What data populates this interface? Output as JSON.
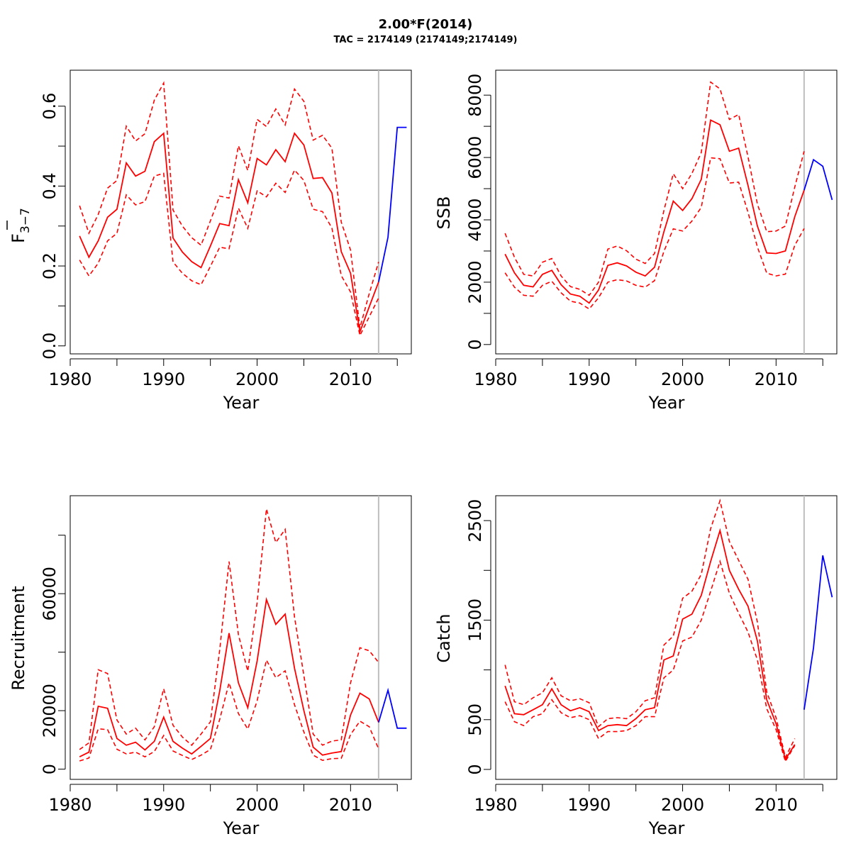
{
  "figure": {
    "title": "2.00*F(2014)",
    "subtitle": "TAC = 2174149 (2174149;2174149)"
  },
  "colors": {
    "estimate": "#ff0000",
    "forecast": "#0000ff",
    "divider": "#bebebe",
    "axis": "#000000"
  },
  "chart_data": [
    {
      "type": "line",
      "ylabel": "F3-7",
      "ylabel_main": "F",
      "ylabel_sub": "3−7",
      "xlabel": "Year",
      "xlim": [
        1980,
        2016.5
      ],
      "ylim": [
        -0.02,
        0.69
      ],
      "x_ticks": [
        1980,
        1985,
        1990,
        1995,
        2000,
        2005,
        2010,
        2015
      ],
      "x_tick_labels": [
        "1980",
        "1990",
        "2000",
        "2010"
      ],
      "x_tick_label_values": [
        1980,
        1990,
        2000,
        2010
      ],
      "y_ticks": [
        0,
        0.1,
        0.2,
        0.3,
        0.4,
        0.5,
        0.6
      ],
      "y_tick_labels": [
        "0.0",
        "0.2",
        "0.4",
        "0.6"
      ],
      "y_tick_label_values": [
        0,
        0.2,
        0.4,
        0.6
      ],
      "divider_x": 2013,
      "years": [
        1981,
        1982,
        1983,
        1984,
        1985,
        1986,
        1987,
        1988,
        1989,
        1990,
        1991,
        1992,
        1993,
        1994,
        1995,
        1996,
        1997,
        1998,
        1999,
        2000,
        2001,
        2002,
        2003,
        2004,
        2005,
        2006,
        2007,
        2008,
        2009,
        2010,
        2011,
        2012,
        2013
      ],
      "estimate": [
        0.275,
        0.222,
        0.263,
        0.322,
        0.342,
        0.458,
        0.425,
        0.437,
        0.511,
        0.532,
        0.27,
        0.235,
        0.211,
        0.196,
        0.25,
        0.306,
        0.301,
        0.416,
        0.358,
        0.469,
        0.453,
        0.491,
        0.461,
        0.532,
        0.503,
        0.419,
        0.421,
        0.383,
        0.236,
        0.182,
        0.035,
        0.098,
        0.16
      ],
      "upper": [
        0.351,
        0.282,
        0.329,
        0.395,
        0.414,
        0.55,
        0.513,
        0.531,
        0.615,
        0.658,
        0.34,
        0.3,
        0.271,
        0.252,
        0.313,
        0.375,
        0.37,
        0.501,
        0.439,
        0.567,
        0.549,
        0.593,
        0.553,
        0.643,
        0.612,
        0.515,
        0.527,
        0.495,
        0.31,
        0.24,
        0.045,
        0.131,
        0.21
      ],
      "lower": [
        0.215,
        0.175,
        0.207,
        0.263,
        0.282,
        0.378,
        0.353,
        0.361,
        0.425,
        0.432,
        0.21,
        0.182,
        0.163,
        0.153,
        0.199,
        0.247,
        0.243,
        0.345,
        0.294,
        0.388,
        0.373,
        0.407,
        0.384,
        0.44,
        0.414,
        0.342,
        0.336,
        0.295,
        0.176,
        0.135,
        0.026,
        0.073,
        0.12
      ],
      "forecast_years": [
        2013,
        2014,
        2015,
        2016
      ],
      "forecast": [
        0.16,
        0.272,
        0.547,
        0.547
      ]
    },
    {
      "type": "line",
      "ylabel": "SSB",
      "xlabel": "Year",
      "xlim": [
        1980,
        2016.5
      ],
      "ylim": [
        -300,
        8800
      ],
      "x_ticks": [
        1980,
        1985,
        1990,
        1995,
        2000,
        2005,
        2010,
        2015
      ],
      "x_tick_labels": [
        "1980",
        "1990",
        "2000",
        "2010"
      ],
      "x_tick_label_values": [
        1980,
        1990,
        2000,
        2010
      ],
      "y_ticks": [
        0,
        1000,
        2000,
        3000,
        4000,
        5000,
        6000,
        7000,
        8000
      ],
      "y_tick_labels": [
        "0",
        "2000",
        "4000",
        "6000",
        "8000"
      ],
      "y_tick_label_values": [
        0,
        2000,
        4000,
        6000,
        8000
      ],
      "divider_x": 2013,
      "years": [
        1981,
        1982,
        1983,
        1984,
        1985,
        1986,
        1987,
        1988,
        1989,
        1990,
        1991,
        1992,
        1993,
        1994,
        1995,
        1996,
        1997,
        1998,
        1999,
        2000,
        2001,
        2002,
        2003,
        2004,
        2005,
        2006,
        2007,
        2008,
        2009,
        2010,
        2011,
        2012,
        2013
      ],
      "estimate": [
        2900,
        2300,
        1900,
        1850,
        2250,
        2380,
        1920,
        1620,
        1550,
        1330,
        1750,
        2540,
        2620,
        2520,
        2320,
        2200,
        2480,
        3620,
        4600,
        4300,
        4680,
        5300,
        7200,
        7050,
        6200,
        6300,
        5100,
        3800,
        2940,
        2920,
        3000,
        4100,
        4950
      ],
      "upper": [
        3570,
        2800,
        2250,
        2200,
        2640,
        2760,
        2200,
        1860,
        1770,
        1580,
        2000,
        3060,
        3160,
        3010,
        2740,
        2600,
        2920,
        4300,
        5480,
        5000,
        5490,
        6160,
        8420,
        8200,
        7220,
        7380,
        6020,
        4510,
        3620,
        3640,
        3800,
        5050,
        6200
      ],
      "lower": [
        2300,
        1840,
        1580,
        1550,
        1900,
        2030,
        1660,
        1390,
        1330,
        1140,
        1500,
        2000,
        2080,
        2040,
        1900,
        1840,
        2050,
        2990,
        3710,
        3640,
        3960,
        4400,
        5990,
        5960,
        5180,
        5210,
        4240,
        3130,
        2290,
        2200,
        2260,
        3180,
        3720
      ],
      "forecast_years": [
        2013,
        2014,
        2015,
        2016
      ],
      "forecast": [
        4950,
        5930,
        5720,
        4640
      ]
    },
    {
      "type": "line",
      "ylabel": "Recruitment",
      "xlabel": "Year",
      "xlim": [
        1980,
        2016.5
      ],
      "ylim": [
        -3500,
        93500
      ],
      "x_ticks": [
        1980,
        1985,
        1990,
        1995,
        2000,
        2005,
        2010,
        2015
      ],
      "x_tick_labels": [
        "1980",
        "1990",
        "2000",
        "2010"
      ],
      "x_tick_label_values": [
        1980,
        1990,
        2000,
        2010
      ],
      "y_ticks": [
        0,
        20000,
        40000,
        60000,
        80000
      ],
      "y_tick_labels": [
        "0",
        "20000",
        "60000"
      ],
      "y_tick_label_values": [
        0,
        20000,
        60000
      ],
      "divider_x": 2013,
      "years": [
        1981,
        1982,
        1983,
        1984,
        1985,
        1986,
        1987,
        1988,
        1989,
        1990,
        1991,
        1992,
        1993,
        1994,
        1995,
        1996,
        1997,
        1998,
        1999,
        2000,
        2001,
        2002,
        2003,
        2004,
        2005,
        2006,
        2007,
        2008,
        2009,
        2010,
        2011,
        2012,
        2013
      ],
      "estimate": [
        4200,
        5800,
        21500,
        20800,
        10500,
        8200,
        9200,
        6600,
        9500,
        17800,
        9500,
        7200,
        5200,
        7800,
        10500,
        26700,
        46500,
        29500,
        21000,
        37000,
        58000,
        49500,
        53000,
        34500,
        20000,
        7500,
        4800,
        5500,
        6000,
        18500,
        26000,
        24000,
        16000
      ],
      "upper": [
        6700,
        9000,
        34000,
        32700,
        16800,
        12000,
        14000,
        10000,
        14500,
        27500,
        15000,
        11000,
        8200,
        12000,
        16200,
        40700,
        71000,
        46000,
        33500,
        57000,
        89000,
        77500,
        82000,
        52000,
        32000,
        12000,
        8200,
        9600,
        10000,
        29500,
        41500,
        40500,
        36500
      ],
      "lower": [
        2800,
        3800,
        13800,
        13500,
        6800,
        5200,
        5800,
        4200,
        6000,
        11500,
        6200,
        4700,
        3300,
        4800,
        6700,
        17000,
        29500,
        19000,
        13700,
        23400,
        37300,
        31300,
        33600,
        22000,
        12700,
        4800,
        3000,
        3600,
        3700,
        11800,
        16400,
        14500,
        6900
      ],
      "forecast_years": [
        2013,
        2014,
        2015,
        2016
      ],
      "forecast": [
        16000,
        27000,
        14000,
        14000
      ]
    },
    {
      "type": "line",
      "ylabel": "Catch",
      "xlabel": "Year",
      "xlim": [
        1980,
        2016.5
      ],
      "ylim": [
        -100,
        2750
      ],
      "x_ticks": [
        1980,
        1985,
        1990,
        1995,
        2000,
        2005,
        2010,
        2015
      ],
      "x_tick_labels": [
        "1980",
        "1990",
        "2000",
        "2010"
      ],
      "x_tick_label_values": [
        1980,
        1990,
        2000,
        2010
      ],
      "y_ticks": [
        0,
        500,
        1000,
        1500,
        2000,
        2500
      ],
      "y_tick_labels": [
        "0",
        "500",
        "1500",
        "2500"
      ],
      "y_tick_label_values": [
        0,
        500,
        1500,
        2500
      ],
      "divider_x": 2013,
      "years": [
        1981,
        1982,
        1983,
        1984,
        1985,
        1986,
        1987,
        1988,
        1989,
        1990,
        1991,
        1992,
        1993,
        1994,
        1995,
        1996,
        1997,
        1998,
        1999,
        2000,
        2001,
        2002,
        2003,
        2004,
        2005,
        2006,
        2007,
        2008,
        2009,
        2010,
        2011,
        2012
      ],
      "estimate": [
        840,
        560,
        550,
        600,
        650,
        810,
        650,
        590,
        620,
        580,
        390,
        440,
        450,
        440,
        510,
        600,
        620,
        1100,
        1140,
        1510,
        1560,
        1750,
        2090,
        2400,
        2000,
        1810,
        1640,
        1290,
        700,
        460,
        100,
        250
      ],
      "upper": [
        1050,
        680,
        650,
        720,
        770,
        920,
        740,
        690,
        710,
        670,
        430,
        510,
        520,
        510,
        580,
        690,
        720,
        1250,
        1340,
        1720,
        1790,
        1960,
        2420,
        2700,
        2290,
        2100,
        1910,
        1480,
        780,
        520,
        120,
        310
      ],
      "lower": [
        680,
        480,
        440,
        530,
        560,
        700,
        570,
        520,
        540,
        500,
        310,
        380,
        380,
        390,
        440,
        530,
        530,
        920,
        1000,
        1290,
        1330,
        1500,
        1790,
        2090,
        1770,
        1570,
        1380,
        1100,
        610,
        400,
        80,
        240
      ],
      "forecast_years": [
        2013,
        2014,
        2015,
        2016
      ],
      "forecast": [
        600,
        1220,
        2150,
        1730
      ]
    }
  ]
}
